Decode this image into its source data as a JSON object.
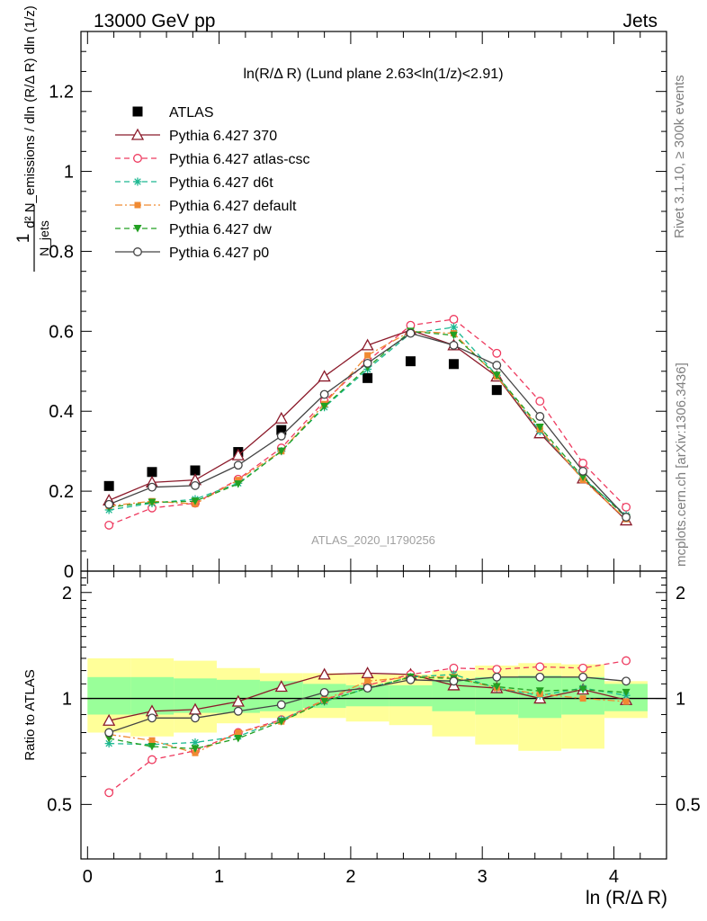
{
  "header": {
    "left": "13000 GeV pp",
    "right": "Jets"
  },
  "side": {
    "rivet": "Rivet 3.1.10, ≥ 300k events",
    "mcplots": "mcplots.cern.ch [arXiv:1306.3436]"
  },
  "main": {
    "title": "ln(R/Δ R) (Lund plane 2.63<ln(1/z)<2.91)",
    "ylabel_frac_num": "1",
    "ylabel_frac_den": "N_jets",
    "ylabel_main": "d² N_emissions / dln (R/Δ R) dln (1/z)",
    "watermark": "ATLAS_2020_I1790256"
  },
  "ratio": {
    "ylabel": "Ratio to ATLAS"
  },
  "xaxis": {
    "label": "ln (R/Δ R)"
  },
  "colors": {
    "data": "#000000",
    "p370": "#8b1a2a",
    "atlascsc": "#ee3a5f",
    "d6t": "#1cb891",
    "default": "#f08a32",
    "dw": "#22a022",
    "p0": "#444444",
    "band_inner": "#99ff99",
    "band_outer": "#ffff99"
  },
  "chart_data": [
    {
      "type": "line",
      "title": "ln(R/Δ R) (Lund plane 2.63<ln(1/z)<2.91)",
      "xlabel": "ln (R/Δ R)",
      "ylabel": "1/N_jets d²N_emissions / dln(R/ΔR) dln(1/z)",
      "xlim": [
        -0.05,
        4.4
      ],
      "ylim": [
        0,
        1.35
      ],
      "yticks": [
        0,
        0.2,
        0.4,
        0.6,
        0.8,
        1.0,
        1.2
      ],
      "ytick_labels": [
        "0",
        "0.2",
        "0.4",
        "0.6",
        "0.8",
        "1",
        "1.2"
      ],
      "x": [
        0.163,
        0.49,
        0.818,
        1.145,
        1.473,
        1.8,
        2.128,
        2.455,
        2.783,
        3.11,
        3.438,
        3.765,
        4.093
      ],
      "legend_position": "top-left",
      "series": [
        {
          "name": "ATLAS",
          "key": "data",
          "marker": "square",
          "values": [
            0.213,
            0.248,
            0.252,
            0.298,
            0.353,
            null,
            0.483,
            0.525,
            0.518,
            0.453,
            null,
            null,
            null
          ]
        },
        {
          "name": "Pythia 6.427 370",
          "key": "p370",
          "marker": "triangle-open",
          "linestyle": "solid",
          "values": [
            0.177,
            0.222,
            0.228,
            0.29,
            0.382,
            0.487,
            0.565,
            0.603,
            0.565,
            0.487,
            0.345,
            0.232,
            0.127
          ]
        },
        {
          "name": "Pythia 6.427 atlas-csc",
          "key": "atlascsc",
          "marker": "circle-open",
          "linestyle": "dashed",
          "values": [
            0.115,
            0.158,
            0.17,
            0.23,
            0.308,
            0.425,
            0.525,
            0.615,
            0.63,
            0.545,
            0.425,
            0.27,
            0.16
          ]
        },
        {
          "name": "Pythia 6.427 d6t",
          "key": "d6t",
          "marker": "asterisk",
          "linestyle": "dashed",
          "values": [
            0.153,
            0.17,
            0.18,
            0.22,
            0.3,
            0.41,
            0.505,
            0.595,
            0.61,
            0.49,
            0.35,
            0.232,
            0.14
          ]
        },
        {
          "name": "Pythia 6.427 default",
          "key": "default",
          "marker": "square-filled",
          "linestyle": "dashdot",
          "values": [
            0.163,
            0.175,
            0.168,
            0.228,
            0.3,
            0.418,
            0.54,
            0.6,
            0.595,
            0.487,
            0.355,
            0.228,
            0.13
          ]
        },
        {
          "name": "Pythia 6.427 dw",
          "key": "dw",
          "marker": "triangle-down-filled",
          "linestyle": "dashed",
          "values": [
            0.16,
            0.172,
            0.175,
            0.218,
            0.3,
            0.412,
            0.51,
            0.6,
            0.59,
            0.49,
            0.36,
            0.235,
            0.135
          ]
        },
        {
          "name": "Pythia 6.427 p0",
          "key": "p0",
          "marker": "circle-open",
          "linestyle": "solid",
          "values": [
            0.167,
            0.21,
            0.214,
            0.265,
            0.338,
            0.442,
            0.52,
            0.595,
            0.565,
            0.515,
            0.387,
            0.25,
            0.135
          ]
        }
      ]
    },
    {
      "type": "line",
      "xlabel": "ln (R/Δ R)",
      "ylabel": "Ratio to ATLAS",
      "xlim": [
        -0.05,
        4.4
      ],
      "ylim": [
        0.35,
        2.3
      ],
      "yticks": [
        0.5,
        1,
        2
      ],
      "ytick_labels": [
        "0.5",
        "1",
        "2"
      ],
      "xticks": [
        0,
        1,
        2,
        3,
        4
      ],
      "xtick_labels": [
        "0",
        "1",
        "2",
        "3",
        "4"
      ],
      "x": [
        0.163,
        0.49,
        0.818,
        1.145,
        1.473,
        1.8,
        2.128,
        2.455,
        2.783,
        3.11,
        3.438,
        3.765,
        4.093
      ],
      "band_edges": [
        0,
        0.327,
        0.655,
        0.982,
        1.31,
        1.637,
        1.964,
        2.292,
        2.619,
        2.946,
        3.274,
        3.601,
        3.928,
        4.256
      ],
      "band_inner": [
        [
          0.9,
          1.15
        ],
        [
          0.9,
          1.15
        ],
        [
          0.91,
          1.14
        ],
        [
          0.91,
          1.13
        ],
        [
          0.92,
          1.12
        ],
        [
          0.94,
          1.1
        ],
        [
          0.95,
          1.09
        ],
        [
          0.95,
          1.09
        ],
        [
          0.92,
          1.13
        ],
        [
          0.9,
          1.15
        ],
        [
          0.88,
          1.16
        ],
        [
          0.9,
          1.15
        ],
        [
          0.92,
          1.1
        ]
      ],
      "band_outer": [
        [
          0.8,
          1.3
        ],
        [
          0.78,
          1.3
        ],
        [
          0.8,
          1.28
        ],
        [
          0.85,
          1.22
        ],
        [
          0.88,
          1.18
        ],
        [
          0.88,
          1.18
        ],
        [
          0.86,
          1.17
        ],
        [
          0.84,
          1.17
        ],
        [
          0.78,
          1.2
        ],
        [
          0.74,
          1.24
        ],
        [
          0.71,
          1.26
        ],
        [
          0.72,
          1.25
        ],
        [
          0.88,
          1.12
        ]
      ],
      "series": [
        {
          "name": "Pythia 6.427 370",
          "key": "p370",
          "marker": "triangle-open",
          "linestyle": "solid",
          "values": [
            0.865,
            0.92,
            0.93,
            0.98,
            1.08,
            1.17,
            1.18,
            1.17,
            1.09,
            1.07,
            1.0,
            1.06,
            0.99
          ]
        },
        {
          "name": "Pythia 6.427 atlas-csc",
          "key": "atlascsc",
          "marker": "circle-open",
          "linestyle": "dashed",
          "values": [
            0.54,
            0.67,
            0.71,
            0.8,
            0.87,
            0.99,
            1.09,
            1.17,
            1.22,
            1.21,
            1.23,
            1.22,
            1.28
          ]
        },
        {
          "name": "Pythia 6.427 d6t",
          "key": "d6t",
          "marker": "asterisk",
          "linestyle": "dashed",
          "values": [
            0.745,
            0.74,
            0.75,
            0.78,
            0.87,
            0.98,
            1.07,
            1.15,
            1.17,
            1.07,
            1.02,
            1.07,
            1.02
          ]
        },
        {
          "name": "Pythia 6.427 default",
          "key": "default",
          "marker": "square-filled",
          "linestyle": "dashdot",
          "values": [
            0.79,
            0.76,
            0.7,
            0.8,
            0.86,
            0.99,
            1.12,
            1.15,
            1.15,
            1.07,
            1.03,
            1.0,
            0.98
          ]
        },
        {
          "name": "Pythia 6.427 dw",
          "key": "dw",
          "marker": "triangle-down-filled",
          "linestyle": "dashed",
          "values": [
            0.77,
            0.73,
            0.72,
            0.77,
            0.86,
            0.98,
            1.07,
            1.15,
            1.14,
            1.08,
            1.05,
            1.06,
            1.04
          ]
        },
        {
          "name": "Pythia 6.427 p0",
          "key": "p0",
          "marker": "circle-open",
          "linestyle": "solid",
          "values": [
            0.8,
            0.88,
            0.88,
            0.92,
            0.96,
            1.04,
            1.07,
            1.13,
            1.12,
            1.15,
            1.15,
            1.15,
            1.12
          ]
        }
      ]
    }
  ]
}
